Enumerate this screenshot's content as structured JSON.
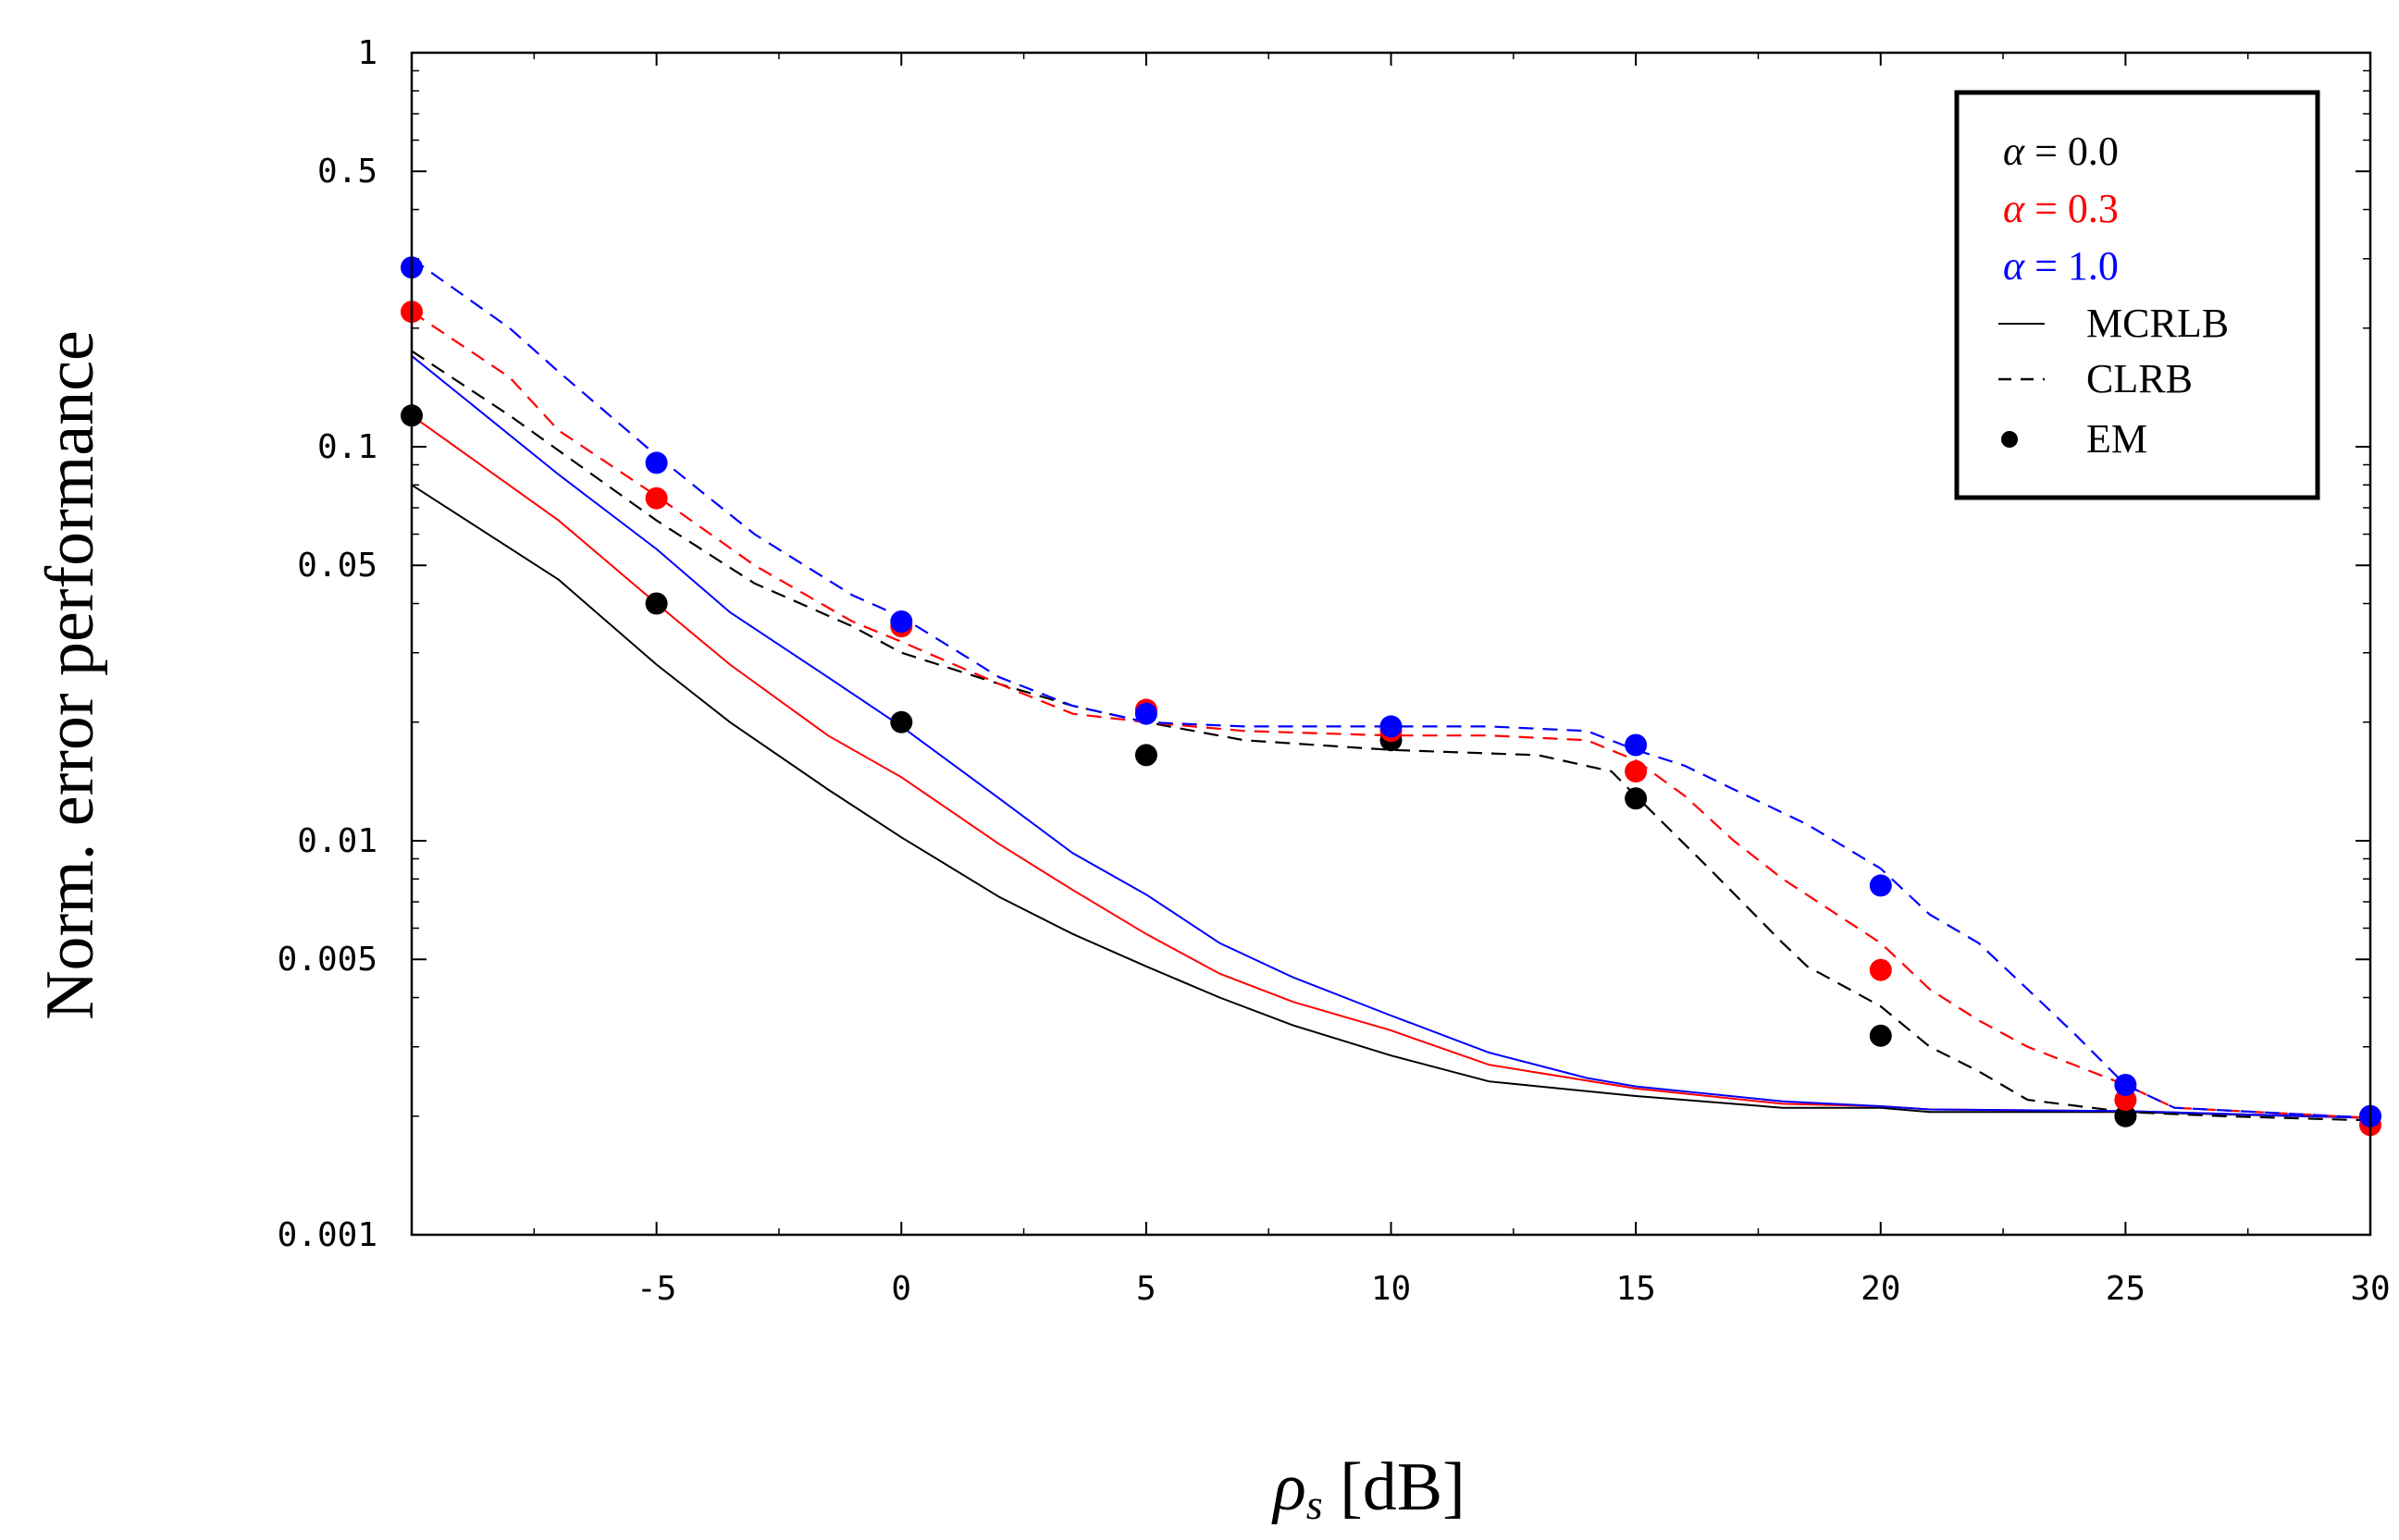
{
  "chart_data": {
    "type": "line",
    "title": "",
    "xlabel": {
      "symbol": "ρ",
      "subscript": "s",
      "unit": " [dB]"
    },
    "ylabel": "Norm. error performance",
    "xlim": [
      -10,
      30
    ],
    "ylim": [
      0.001,
      1
    ],
    "yscale": "log",
    "grid": false,
    "x_ticks": [
      -5,
      0,
      5,
      10,
      15,
      20,
      25,
      30
    ],
    "x_tick_labels": [
      "-5",
      "0",
      "5",
      "10",
      "15",
      "20",
      "25",
      "30"
    ],
    "y_ticks": [
      1,
      0.5,
      0.1,
      0.05,
      0.01,
      0.005,
      0.001
    ],
    "y_tick_labels": [
      "1",
      "0.5",
      "0.1",
      "0.05",
      "0.01",
      "0.005",
      "0.001"
    ],
    "legend": {
      "position": "top-right",
      "alpha_entries": [
        {
          "symbol": "α",
          "text": " = 0.0",
          "color": "#000000"
        },
        {
          "symbol": "α",
          "text": " = 0.3",
          "color": "#ff0000"
        },
        {
          "symbol": "α",
          "text": " = 1.0",
          "color": "#0000ff"
        }
      ],
      "style_entries": [
        {
          "style": "solid",
          "label": "MCRLB"
        },
        {
          "style": "dashed",
          "label": "CLRB"
        },
        {
          "style": "dot",
          "label": "EM"
        }
      ]
    },
    "series": [
      {
        "name": "MCRLB α = 0.0",
        "kind": "MCRLB",
        "alpha": "0.0",
        "color": "#000000",
        "style": "solid",
        "x": [
          -10,
          -7,
          -5,
          -3.5,
          -1.5,
          0,
          2,
          3.5,
          5,
          6.5,
          8,
          10,
          12,
          15,
          18,
          20,
          21,
          25,
          30
        ],
        "y": [
          0.08,
          0.046,
          0.028,
          0.02,
          0.0135,
          0.0102,
          0.0072,
          0.0058,
          0.0048,
          0.004,
          0.0034,
          0.00285,
          0.00245,
          0.00225,
          0.0021,
          0.0021,
          0.00205,
          0.00205,
          0.00198
        ]
      },
      {
        "name": "MCRLB α = 0.3",
        "kind": "MCRLB",
        "alpha": "0.3",
        "color": "#ff0000",
        "style": "solid",
        "x": [
          -10,
          -7,
          -5,
          -3.5,
          -1.5,
          0,
          2,
          3.5,
          5,
          6.5,
          8,
          10,
          12,
          15,
          18,
          20,
          21,
          25,
          30
        ],
        "y": [
          0.12,
          0.065,
          0.04,
          0.028,
          0.0185,
          0.0145,
          0.0098,
          0.0075,
          0.0058,
          0.0046,
          0.0039,
          0.0033,
          0.0027,
          0.00235,
          0.00215,
          0.00212,
          0.00208,
          0.00206,
          0.00198
        ]
      },
      {
        "name": "MCRLB α = 1.0",
        "kind": "MCRLB",
        "alpha": "1.0",
        "color": "#0000ff",
        "style": "solid",
        "x": [
          -10,
          -7,
          -5,
          -3.5,
          -1.5,
          0,
          2,
          3.5,
          5,
          6.5,
          8,
          10,
          12,
          14,
          15,
          18,
          20,
          21,
          25,
          30
        ],
        "y": [
          0.17,
          0.085,
          0.055,
          0.038,
          0.026,
          0.0195,
          0.0128,
          0.0093,
          0.0073,
          0.0055,
          0.0045,
          0.0036,
          0.0029,
          0.0025,
          0.00238,
          0.00218,
          0.00212,
          0.00208,
          0.00206,
          0.00198
        ]
      },
      {
        "name": "CLRB α = 0.0",
        "kind": "CLRB",
        "alpha": "0.0",
        "color": "#000000",
        "style": "dashed",
        "x": [
          -10,
          -8,
          -5,
          -3,
          -1,
          0,
          2,
          3.5,
          5,
          7,
          10,
          13,
          14.5,
          15,
          16.5,
          18,
          18.5,
          20,
          21,
          22,
          23,
          25,
          27,
          30
        ],
        "y": [
          0.175,
          0.12,
          0.065,
          0.045,
          0.035,
          0.03,
          0.025,
          0.022,
          0.02,
          0.018,
          0.017,
          0.0165,
          0.015,
          0.013,
          0.0085,
          0.0055,
          0.0048,
          0.0038,
          0.003,
          0.0026,
          0.0022,
          0.00205,
          0.002,
          0.00195
        ]
      },
      {
        "name": "CLRB α = 0.3",
        "kind": "CLRB",
        "alpha": "0.3",
        "color": "#ff0000",
        "style": "dashed",
        "x": [
          -10,
          -8,
          -7,
          -5,
          -3,
          -1,
          0,
          2,
          3.5,
          5,
          7,
          10,
          12,
          14,
          15,
          16,
          17,
          18,
          20,
          21,
          22,
          23,
          25,
          26,
          30
        ],
        "y": [
          0.22,
          0.15,
          0.11,
          0.075,
          0.05,
          0.036,
          0.032,
          0.025,
          0.021,
          0.02,
          0.019,
          0.0185,
          0.0185,
          0.018,
          0.016,
          0.013,
          0.01,
          0.008,
          0.0055,
          0.0042,
          0.0035,
          0.003,
          0.0024,
          0.0021,
          0.00198
        ]
      },
      {
        "name": "CLRB α = 1.0",
        "kind": "CLRB",
        "alpha": "1.0",
        "color": "#0000ff",
        "style": "dashed",
        "x": [
          -10,
          -8,
          -7,
          -5,
          -3,
          -1,
          0,
          2,
          3.5,
          5,
          7,
          10,
          12,
          14,
          15,
          16,
          17,
          18.5,
          20,
          21,
          22,
          23,
          24,
          25,
          26,
          30
        ],
        "y": [
          0.3,
          0.2,
          0.155,
          0.095,
          0.06,
          0.042,
          0.037,
          0.026,
          0.022,
          0.02,
          0.0195,
          0.0195,
          0.0195,
          0.019,
          0.017,
          0.0155,
          0.0135,
          0.011,
          0.0085,
          0.0065,
          0.0055,
          0.0042,
          0.0032,
          0.0024,
          0.0021,
          0.00198
        ]
      }
    ],
    "points": [
      {
        "name": "EM α = 0.0",
        "kind": "EM",
        "alpha": "0.0",
        "color": "#000000",
        "x": [
          -10,
          -5,
          0,
          5,
          10,
          15,
          20,
          25,
          30
        ],
        "y": [
          0.12,
          0.04,
          0.02,
          0.0165,
          0.018,
          0.0128,
          0.0032,
          0.002,
          0.002
        ]
      },
      {
        "name": "EM α = 0.3",
        "kind": "EM",
        "alpha": "0.3",
        "color": "#ff0000",
        "x": [
          -10,
          -5,
          0,
          5,
          10,
          15,
          20,
          25,
          30
        ],
        "y": [
          0.22,
          0.074,
          0.035,
          0.0215,
          0.019,
          0.015,
          0.0047,
          0.0022,
          0.0019
        ]
      },
      {
        "name": "EM α = 1.0",
        "kind": "EM",
        "alpha": "1.0",
        "color": "#0000ff",
        "x": [
          -10,
          -5,
          0,
          5,
          10,
          15,
          20,
          25,
          30
        ],
        "y": [
          0.285,
          0.091,
          0.036,
          0.021,
          0.0195,
          0.0175,
          0.0077,
          0.0024,
          0.002
        ]
      }
    ]
  }
}
